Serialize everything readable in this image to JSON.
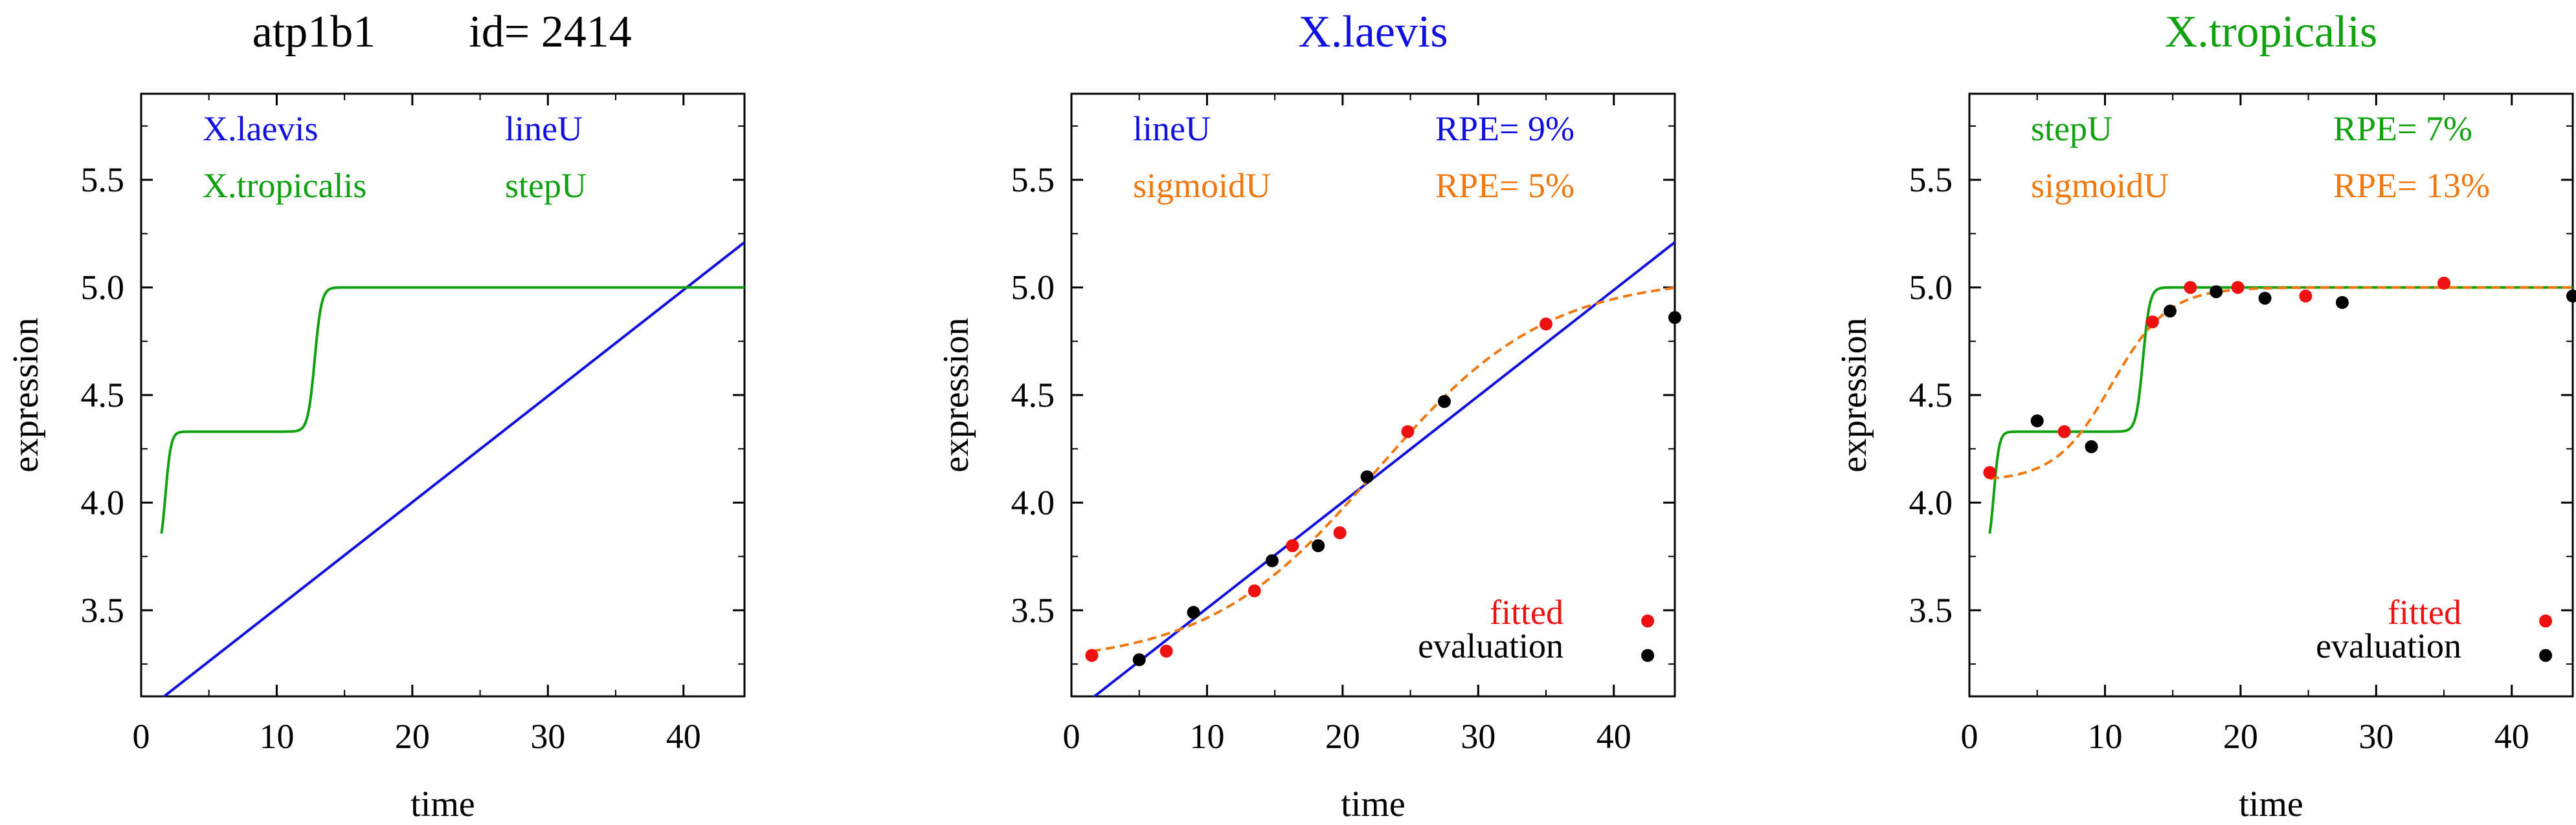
{
  "figure": {
    "header_gene": "atp1b1",
    "header_id": "id= 2414"
  },
  "colors": {
    "laevis": "#1010e0",
    "tropicalis": "#10a010",
    "sigmoid": "#f07810",
    "fitted": "#ee1111",
    "evaluation": "#000000"
  },
  "chart_data": [
    {
      "type": "line",
      "title": "",
      "xlabel": "time",
      "ylabel": "expression",
      "xlim": [
        0,
        44.5
      ],
      "ylim": [
        3.1,
        5.9
      ],
      "xticks": [
        0,
        10,
        20,
        30,
        40
      ],
      "yticks": [
        3.5,
        4.0,
        4.5,
        5.0,
        5.5
      ],
      "legend": [
        {
          "label": "X.laevis",
          "color": "#1010e0"
        },
        {
          "label": "lineU",
          "color": "#1010e0"
        },
        {
          "label": "X.tropicalis",
          "color": "#10a010"
        },
        {
          "label": "stepU",
          "color": "#10a010"
        }
      ],
      "series": [
        {
          "name": "lineU",
          "kind": "line",
          "color": "#1010e0",
          "x0": 1.5,
          "y0": 3.09,
          "x1": 44.5,
          "y1": 5.21
        },
        {
          "name": "stepU",
          "kind": "step",
          "color": "#10a010",
          "x0": 1.5,
          "x1": 44.5,
          "base": 3.75,
          "low": 4.33,
          "high": 5.0,
          "t1": 1.8,
          "k1": 5.0,
          "t2": 12.8,
          "k2": 4.0
        }
      ]
    },
    {
      "type": "line",
      "title": "X.laevis",
      "title_color": "#1010e0",
      "xlabel": "time",
      "ylabel": "expression",
      "xlim": [
        0,
        44.5
      ],
      "ylim": [
        3.1,
        5.9
      ],
      "xticks": [
        0,
        10,
        20,
        30,
        40
      ],
      "yticks": [
        3.5,
        4.0,
        4.5,
        5.0,
        5.5
      ],
      "legend": [
        {
          "label": "lineU",
          "color": "#1010e0"
        },
        {
          "label": "RPE= 9%",
          "color": "#1010e0"
        },
        {
          "label": "sigmoidU",
          "color": "#f07810"
        },
        {
          "label": "RPE= 5%",
          "color": "#f07810"
        }
      ],
      "point_legend": [
        {
          "label": "fitted",
          "color": "#ee1111"
        },
        {
          "label": "evaluation",
          "color": "#000000"
        }
      ],
      "series": [
        {
          "name": "lineU",
          "kind": "line",
          "color": "#1010e0",
          "x0": 1.5,
          "y0": 3.09,
          "x1": 44.5,
          "y1": 5.21
        },
        {
          "name": "sigmoidU",
          "kind": "sigmoid",
          "color": "#f07810",
          "dashed": true,
          "x0": 1.5,
          "x1": 44.5,
          "low": 3.25,
          "high": 5.05,
          "mid": 22.5,
          "k": 0.16
        }
      ],
      "points": {
        "fitted": {
          "x": [
            1.5,
            7.0,
            13.5,
            16.3,
            19.8,
            24.8,
            35.0,
            42.5
          ],
          "y": [
            3.29,
            3.31,
            3.59,
            3.8,
            3.86,
            4.33,
            4.83,
            3.45
          ]
        },
        "evaluation": {
          "x": [
            5.0,
            9.0,
            14.8,
            18.2,
            21.8,
            27.5,
            44.5,
            42.5
          ],
          "y": [
            3.27,
            3.49,
            3.73,
            3.8,
            4.12,
            4.47,
            4.86,
            3.29
          ]
        }
      }
    },
    {
      "type": "line",
      "title": "X.tropicalis",
      "title_color": "#10a010",
      "xlabel": "time",
      "ylabel": "expression",
      "xlim": [
        0,
        44.5
      ],
      "ylim": [
        3.1,
        5.9
      ],
      "xticks": [
        0,
        10,
        20,
        30,
        40
      ],
      "yticks": [
        3.5,
        4.0,
        4.5,
        5.0,
        5.5
      ],
      "legend": [
        {
          "label": "stepU",
          "color": "#10a010"
        },
        {
          "label": "RPE= 7%",
          "color": "#10a010"
        },
        {
          "label": "sigmoidU",
          "color": "#f07810"
        },
        {
          "label": "RPE= 13%",
          "color": "#f07810"
        }
      ],
      "point_legend": [
        {
          "label": "fitted",
          "color": "#ee1111"
        },
        {
          "label": "evaluation",
          "color": "#000000"
        }
      ],
      "series": [
        {
          "name": "stepU",
          "kind": "step",
          "color": "#10a010",
          "x0": 1.5,
          "x1": 44.5,
          "base": 3.75,
          "low": 4.33,
          "high": 5.0,
          "t1": 1.8,
          "k1": 5.0,
          "t2": 12.8,
          "k2": 4.0
        },
        {
          "name": "sigmoidU",
          "kind": "sigmoid",
          "color": "#f07810",
          "dashed": true,
          "x0": 1.5,
          "x1": 44.5,
          "low": 4.1,
          "high": 5.0,
          "mid": 10.5,
          "k": 0.48
        }
      ],
      "points": {
        "fitted": {
          "x": [
            1.5,
            7.0,
            13.5,
            16.3,
            19.8,
            24.8,
            35.0,
            42.5
          ],
          "y": [
            4.14,
            4.33,
            4.84,
            5.0,
            5.0,
            4.96,
            5.02,
            3.45
          ]
        },
        "evaluation": {
          "x": [
            5.0,
            9.0,
            14.8,
            18.2,
            21.8,
            27.5,
            44.5,
            42.5
          ],
          "y": [
            4.38,
            4.26,
            4.89,
            4.98,
            4.95,
            4.93,
            4.96,
            3.29
          ]
        }
      }
    }
  ]
}
